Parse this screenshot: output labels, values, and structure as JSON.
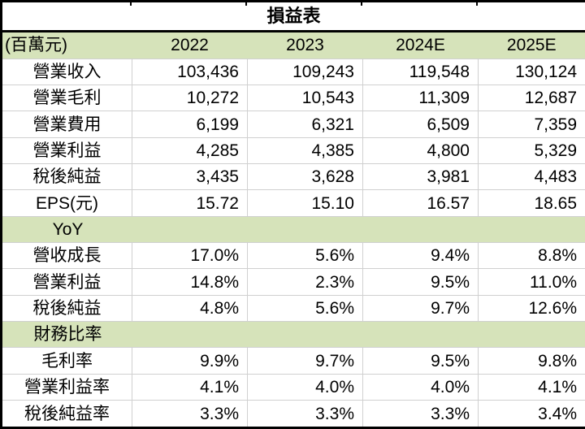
{
  "table": {
    "title": "損益表",
    "unit_label": "(百萬元)",
    "columns": [
      "2022",
      "2023",
      "2024E",
      "2025E"
    ],
    "rows": [
      {
        "type": "data",
        "label": "營業收入",
        "values": [
          "103,436",
          "109,243",
          "119,548",
          "130,124"
        ]
      },
      {
        "type": "data",
        "label": "營業毛利",
        "values": [
          "10,272",
          "10,543",
          "11,309",
          "12,687"
        ]
      },
      {
        "type": "data",
        "label": "營業費用",
        "values": [
          "6,199",
          "6,321",
          "6,509",
          "7,359"
        ]
      },
      {
        "type": "data",
        "label": "營業利益",
        "values": [
          "4,285",
          "4,385",
          "4,800",
          "5,329"
        ]
      },
      {
        "type": "data",
        "label": "稅後純益",
        "values": [
          "3,435",
          "3,628",
          "3,981",
          "4,483"
        ]
      },
      {
        "type": "data",
        "label": "EPS(元)",
        "values": [
          "15.72",
          "15.10",
          "16.57",
          "18.65"
        ]
      },
      {
        "type": "section",
        "label": "YoY"
      },
      {
        "type": "data",
        "label": "營收成長",
        "values": [
          "17.0%",
          "5.6%",
          "9.4%",
          "8.8%"
        ]
      },
      {
        "type": "data",
        "label": "營業利益",
        "values": [
          "14.8%",
          "2.3%",
          "9.5%",
          "11.0%"
        ]
      },
      {
        "type": "data",
        "label": "稅後純益",
        "values": [
          "4.8%",
          "5.6%",
          "9.7%",
          "12.6%"
        ]
      },
      {
        "type": "section",
        "label": "財務比率"
      },
      {
        "type": "data",
        "label": "毛利率",
        "values": [
          "9.9%",
          "9.7%",
          "9.5%",
          "9.8%"
        ]
      },
      {
        "type": "data",
        "label": "營業利益率",
        "values": [
          "4.1%",
          "4.0%",
          "4.0%",
          "4.1%"
        ]
      },
      {
        "type": "data",
        "label": "稅後純益率",
        "values": [
          "3.3%",
          "3.3%",
          "3.3%",
          "3.4%"
        ]
      }
    ]
  },
  "colors": {
    "band_green": "#d6e3ba",
    "grid_line": "#d0d0d0",
    "border_black": "#000000"
  },
  "chart_data": {
    "type": "table",
    "title": "損益表",
    "unit": "百萬元",
    "columns": [
      "2022",
      "2023",
      "2024E",
      "2025E"
    ],
    "sections": [
      {
        "name": "損益表",
        "rows": [
          {
            "label": "營業收入",
            "values": [
              103436,
              109243,
              119548,
              130124
            ]
          },
          {
            "label": "營業毛利",
            "values": [
              10272,
              10543,
              11309,
              12687
            ]
          },
          {
            "label": "營業費用",
            "values": [
              6199,
              6321,
              6509,
              7359
            ]
          },
          {
            "label": "營業利益",
            "values": [
              4285,
              4385,
              4800,
              5329
            ]
          },
          {
            "label": "稅後純益",
            "values": [
              3435,
              3628,
              3981,
              4483
            ]
          },
          {
            "label": "EPS(元)",
            "values": [
              15.72,
              15.1,
              16.57,
              18.65
            ]
          }
        ]
      },
      {
        "name": "YoY",
        "rows": [
          {
            "label": "營收成長",
            "values_pct": [
              17.0,
              5.6,
              9.4,
              8.8
            ]
          },
          {
            "label": "營業利益",
            "values_pct": [
              14.8,
              2.3,
              9.5,
              11.0
            ]
          },
          {
            "label": "稅後純益",
            "values_pct": [
              4.8,
              5.6,
              9.7,
              12.6
            ]
          }
        ]
      },
      {
        "name": "財務比率",
        "rows": [
          {
            "label": "毛利率",
            "values_pct": [
              9.9,
              9.7,
              9.5,
              9.8
            ]
          },
          {
            "label": "營業利益率",
            "values_pct": [
              4.1,
              4.0,
              4.0,
              4.1
            ]
          },
          {
            "label": "稅後純益率",
            "values_pct": [
              3.3,
              3.3,
              3.3,
              3.4
            ]
          }
        ]
      }
    ]
  }
}
